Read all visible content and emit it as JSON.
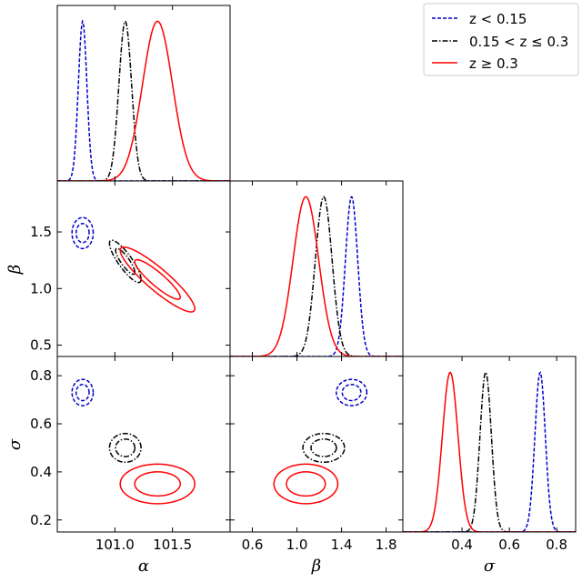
{
  "chart_data": {
    "type": "corner",
    "parameters": [
      "α",
      "β",
      "σ"
    ],
    "axis_labels": {
      "alpha": "α",
      "beta": "β",
      "sigma": "σ"
    },
    "ranges": {
      "alpha": [
        100.5,
        102.0
      ],
      "beta": [
        0.4,
        1.95
      ],
      "sigma": [
        0.15,
        0.88
      ]
    },
    "ticks": {
      "alpha": [
        101.0,
        101.5
      ],
      "alpha_labels": [
        "101.0",
        "101.5"
      ],
      "beta_x": [
        0.6,
        1.0,
        1.4,
        1.8
      ],
      "beta_x_labels": [
        "0.6",
        "1.0",
        "1.4",
        "1.8"
      ],
      "beta_y": [
        0.5,
        1.0,
        1.5
      ],
      "beta_y_labels": [
        "0.5",
        "1.0",
        "1.5"
      ],
      "sigma_x": [
        0.4,
        0.6,
        0.8
      ],
      "sigma_x_labels": [
        "0.4",
        "0.6",
        "0.8"
      ],
      "sigma_y": [
        0.2,
        0.4,
        0.6,
        0.8
      ],
      "sigma_y_labels": [
        "0.2",
        "0.4",
        "0.6",
        "0.8"
      ]
    },
    "legend": {
      "placement": "top-right",
      "entries": [
        {
          "series": "low",
          "label": "z < 0.15"
        },
        {
          "series": "mid",
          "label": "0.15 < z ≤ 0.3"
        },
        {
          "series": "high",
          "label": "z ≥ 0.3"
        }
      ]
    },
    "series": [
      {
        "id": "low",
        "color": "#0000cc",
        "dash": "dashed",
        "alpha": {
          "mean": 100.72,
          "sd": 0.037
        },
        "beta": {
          "mean": 1.49,
          "sd": 0.055
        },
        "sigma": {
          "mean": 0.73,
          "sd": 0.022
        },
        "rho": {
          "alpha_beta": 0.0,
          "alpha_sigma": 0.0,
          "beta_sigma": 0.0
        }
      },
      {
        "id": "mid",
        "color": "#000000",
        "dash": "dashdot",
        "alpha": {
          "mean": 101.09,
          "sd": 0.055
        },
        "beta": {
          "mean": 1.24,
          "sd": 0.075
        },
        "sigma": {
          "mean": 0.5,
          "sd": 0.024
        },
        "rho": {
          "alpha_beta": -0.85,
          "alpha_sigma": 0.0,
          "beta_sigma": 0.0
        }
      },
      {
        "id": "high",
        "color": "#ff0000",
        "dash": "solid",
        "alpha": {
          "mean": 101.37,
          "sd": 0.13
        },
        "beta": {
          "mean": 1.08,
          "sd": 0.115
        },
        "sigma": {
          "mean": 0.35,
          "sd": 0.033
        },
        "rho": {
          "alpha_beta": -0.9,
          "alpha_sigma": 0.0,
          "beta_sigma": 0.0
        }
      }
    ],
    "contour_levels_sigma": [
      1,
      2
    ],
    "grid": false
  }
}
